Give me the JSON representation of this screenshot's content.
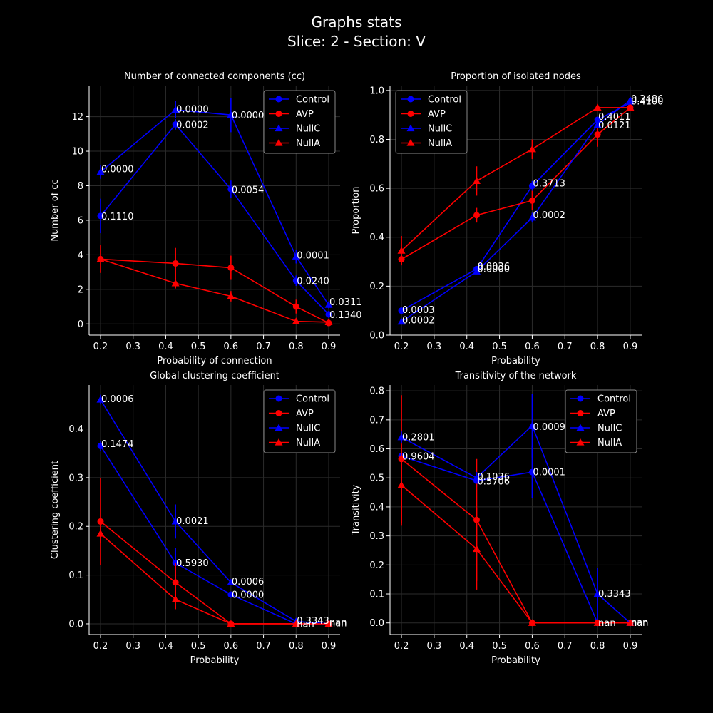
{
  "figure": {
    "title_line1": "Graphs stats",
    "title_line2": "Slice: 2  -  Section: V"
  },
  "colors": {
    "Control": "#0000ff",
    "AVP": "#ff0000",
    "NullC": "#0000ff",
    "NullA": "#ff0000"
  },
  "chart_data": [
    {
      "type": "line",
      "title": "Number of connected components (cc)",
      "xlabel": "Probability of connection",
      "ylabel": "Number of cc",
      "xlim": [
        0.165,
        0.935
      ],
      "ylim": [
        -0.65,
        13.8
      ],
      "xticks": [
        0.2,
        0.3,
        0.4,
        0.5,
        0.6,
        0.7,
        0.8,
        0.9
      ],
      "xtick_labels": [
        "0.2",
        "0.3",
        "0.4",
        "0.5",
        "0.6",
        "0.7",
        "0.8",
        "0.9"
      ],
      "yticks": [
        0,
        2,
        4,
        6,
        8,
        10,
        12
      ],
      "ytick_labels": [
        "0",
        "2",
        "4",
        "6",
        "8",
        "10",
        "12"
      ],
      "grid": true,
      "legend": "top-right",
      "x": [
        0.2,
        0.43,
        0.6,
        0.8,
        0.9
      ],
      "series": [
        {
          "name": "Control",
          "marker": "circle",
          "values": [
            6.25,
            11.55,
            7.8,
            2.5,
            0.55
          ],
          "err": [
            1.0,
            0.3,
            0.5,
            0.3,
            0.2
          ]
        },
        {
          "name": "AVP",
          "marker": "circle",
          "values": [
            3.75,
            3.5,
            3.25,
            1.0,
            0.05
          ],
          "err": [
            0.8,
            0.9,
            0.7,
            0.4,
            0.05
          ]
        },
        {
          "name": "NullC",
          "marker": "triangle",
          "values": [
            8.8,
            12.4,
            12.1,
            3.9,
            1.1
          ],
          "err": [
            0.4,
            0.5,
            1.0,
            0.4,
            0.2
          ]
        },
        {
          "name": "NullA",
          "marker": "triangle",
          "values": [
            3.75,
            2.35,
            1.6,
            0.15,
            0.1
          ],
          "err": [
            0.1,
            0.3,
            0.3,
            0.05,
            0.05
          ]
        }
      ],
      "annotations": [
        {
          "x": 0.2,
          "y": 9.0,
          "text": "0.0000"
        },
        {
          "x": 0.2,
          "y": 6.25,
          "text": "0.1110"
        },
        {
          "x": 0.43,
          "y": 12.45,
          "text": "0.0000"
        },
        {
          "x": 0.43,
          "y": 11.55,
          "text": "0.0002"
        },
        {
          "x": 0.6,
          "y": 12.1,
          "text": "0.0000"
        },
        {
          "x": 0.6,
          "y": 7.8,
          "text": "0.0054"
        },
        {
          "x": 0.8,
          "y": 4.0,
          "text": "0.0001"
        },
        {
          "x": 0.8,
          "y": 2.5,
          "text": "0.0240"
        },
        {
          "x": 0.9,
          "y": 1.3,
          "text": "0.0311"
        },
        {
          "x": 0.9,
          "y": 0.55,
          "text": "0.1340"
        }
      ]
    },
    {
      "type": "line",
      "title": "Proportion of isolated nodes",
      "xlabel": "Probability",
      "ylabel": "Proportion",
      "xlim": [
        0.165,
        0.935
      ],
      "ylim": [
        0.0,
        1.02
      ],
      "xticks": [
        0.2,
        0.3,
        0.4,
        0.5,
        0.6,
        0.7,
        0.8,
        0.9
      ],
      "xtick_labels": [
        "0.2",
        "0.3",
        "0.4",
        "0.5",
        "0.6",
        "0.7",
        "0.8",
        "0.9"
      ],
      "yticks": [
        0.0,
        0.2,
        0.4,
        0.6,
        0.8,
        1.0
      ],
      "ytick_labels": [
        "0.0",
        "0.2",
        "0.4",
        "0.6",
        "0.8",
        "1.0"
      ],
      "grid": true,
      "legend": "top-left",
      "x": [
        0.2,
        0.43,
        0.6,
        0.8,
        0.9
      ],
      "series": [
        {
          "name": "Control",
          "marker": "circle",
          "values": [
            0.1,
            0.27,
            0.61,
            0.88,
            0.95
          ],
          "err": [
            0.01,
            0.01,
            0.02,
            0.01,
            0.01
          ]
        },
        {
          "name": "AVP",
          "marker": "circle",
          "values": [
            0.31,
            0.49,
            0.55,
            0.82,
            0.93
          ],
          "err": [
            0.02,
            0.03,
            0.04,
            0.05,
            0.01
          ]
        },
        {
          "name": "NullC",
          "marker": "triangle",
          "values": [
            0.055,
            0.26,
            0.48,
            0.86,
            0.96
          ],
          "err": [
            0.01,
            0.01,
            0.02,
            0.01,
            0.01
          ]
        },
        {
          "name": "NullA",
          "marker": "triangle",
          "values": [
            0.345,
            0.63,
            0.76,
            0.93,
            0.93
          ],
          "err": [
            0.06,
            0.06,
            0.04,
            0.01,
            0.01
          ]
        }
      ],
      "annotations": [
        {
          "x": 0.2,
          "y": 0.105,
          "text": "0.0003"
        },
        {
          "x": 0.2,
          "y": 0.063,
          "text": "0.0002"
        },
        {
          "x": 0.43,
          "y": 0.282,
          "text": "0.0036"
        },
        {
          "x": 0.43,
          "y": 0.272,
          "text": "0.0000"
        },
        {
          "x": 0.6,
          "y": 0.622,
          "text": "0.3713"
        },
        {
          "x": 0.6,
          "y": 0.492,
          "text": "0.0002"
        },
        {
          "x": 0.8,
          "y": 0.895,
          "text": "0.4011"
        },
        {
          "x": 0.8,
          "y": 0.86,
          "text": "0.0121"
        },
        {
          "x": 0.9,
          "y": 0.967,
          "text": "0.2486"
        },
        {
          "x": 0.9,
          "y": 0.958,
          "text": "0.4100"
        }
      ]
    },
    {
      "type": "line",
      "title": "Global clustering coefficient",
      "xlabel": "Probability",
      "ylabel": "Clustering coefficient",
      "xlim": [
        0.165,
        0.935
      ],
      "ylim": [
        -0.022,
        0.49
      ],
      "xticks": [
        0.2,
        0.3,
        0.4,
        0.5,
        0.6,
        0.7,
        0.8,
        0.9
      ],
      "xtick_labels": [
        "0.2",
        "0.3",
        "0.4",
        "0.5",
        "0.6",
        "0.7",
        "0.8",
        "0.9"
      ],
      "yticks": [
        0.0,
        0.1,
        0.2,
        0.3,
        0.4
      ],
      "ytick_labels": [
        "0.0",
        "0.1",
        "0.2",
        "0.3",
        "0.4"
      ],
      "grid": true,
      "legend": "top-right",
      "x": [
        0.2,
        0.43,
        0.6,
        0.8,
        0.9
      ],
      "series": [
        {
          "name": "Control",
          "marker": "circle",
          "values": [
            0.365,
            0.125,
            0.06,
            0.0,
            0.0
          ],
          "err": [
            0.01,
            0.03,
            0.005,
            0.0,
            0.0
          ]
        },
        {
          "name": "AVP",
          "marker": "circle",
          "values": [
            0.21,
            0.085,
            0.0,
            0.0,
            0.0
          ],
          "err": [
            0.09,
            0.04,
            0.0,
            0.0,
            0.0
          ]
        },
        {
          "name": "NullC",
          "marker": "triangle",
          "values": [
            0.46,
            0.21,
            0.085,
            0.005,
            0.0
          ],
          "err": [
            0.01,
            0.035,
            0.005,
            0.002,
            0.0
          ]
        },
        {
          "name": "NullA",
          "marker": "triangle",
          "values": [
            0.185,
            0.05,
            0.0,
            0.0,
            0.0
          ],
          "err": [
            0.02,
            0.02,
            0.0,
            0.0,
            0.0
          ]
        }
      ],
      "annotations": [
        {
          "x": 0.2,
          "y": 0.462,
          "text": "0.0006"
        },
        {
          "x": 0.2,
          "y": 0.37,
          "text": "0.1474"
        },
        {
          "x": 0.43,
          "y": 0.212,
          "text": "0.0021"
        },
        {
          "x": 0.43,
          "y": 0.126,
          "text": "0.5930"
        },
        {
          "x": 0.6,
          "y": 0.088,
          "text": "0.0006"
        },
        {
          "x": 0.6,
          "y": 0.061,
          "text": "0.0000"
        },
        {
          "x": 0.8,
          "y": 0.007,
          "text": "0.3343"
        },
        {
          "x": 0.8,
          "y": 0.001,
          "text": "nan"
        },
        {
          "x": 0.9,
          "y": 0.004,
          "text": "nan"
        },
        {
          "x": 0.9,
          "y": 0.002,
          "text": "nan"
        }
      ]
    },
    {
      "type": "line",
      "title": "Transitivity of the network",
      "xlabel": "Probability",
      "ylabel": "Transitivity",
      "xlim": [
        0.165,
        0.935
      ],
      "ylim": [
        -0.04,
        0.82
      ],
      "xticks": [
        0.2,
        0.3,
        0.4,
        0.5,
        0.6,
        0.7,
        0.8,
        0.9
      ],
      "xtick_labels": [
        "0.2",
        "0.3",
        "0.4",
        "0.5",
        "0.6",
        "0.7",
        "0.8",
        "0.9"
      ],
      "yticks": [
        0.0,
        0.1,
        0.2,
        0.3,
        0.4,
        0.5,
        0.6,
        0.7,
        0.8
      ],
      "ytick_labels": [
        "0.0",
        "0.1",
        "0.2",
        "0.3",
        "0.4",
        "0.5",
        "0.6",
        "0.7",
        "0.8"
      ],
      "grid": true,
      "legend": "top-right",
      "x": [
        0.2,
        0.43,
        0.6,
        0.8,
        0.9
      ],
      "series": [
        {
          "name": "Control",
          "marker": "circle",
          "values": [
            0.575,
            0.49,
            0.52,
            0.0,
            0.0
          ],
          "err": [
            0.02,
            0.02,
            0.09,
            0.0,
            0.0
          ]
        },
        {
          "name": "AVP",
          "marker": "circle",
          "values": [
            0.565,
            0.355,
            0.0,
            0.0,
            0.0
          ],
          "err": [
            0.22,
            0.21,
            0.0,
            0.0,
            0.0
          ]
        },
        {
          "name": "NullC",
          "marker": "triangle",
          "values": [
            0.64,
            0.5,
            0.68,
            0.1,
            0.0
          ],
          "err": [
            0.02,
            0.02,
            0.11,
            0.09,
            0.0
          ]
        },
        {
          "name": "NullA",
          "marker": "triangle",
          "values": [
            0.475,
            0.255,
            0.0,
            0.0,
            0.0
          ],
          "err": [
            0.14,
            0.14,
            0.0,
            0.0,
            0.0
          ]
        }
      ],
      "annotations": [
        {
          "x": 0.2,
          "y": 0.642,
          "text": "0.2801"
        },
        {
          "x": 0.2,
          "y": 0.575,
          "text": "0.9604"
        },
        {
          "x": 0.43,
          "y": 0.506,
          "text": "0.1036"
        },
        {
          "x": 0.43,
          "y": 0.49,
          "text": "0.5706"
        },
        {
          "x": 0.6,
          "y": 0.677,
          "text": "0.0009"
        },
        {
          "x": 0.6,
          "y": 0.522,
          "text": "0.0001"
        },
        {
          "x": 0.8,
          "y": 0.102,
          "text": "0.3343"
        },
        {
          "x": 0.8,
          "y": 0.002,
          "text": "nan"
        },
        {
          "x": 0.9,
          "y": 0.004,
          "text": "nan"
        },
        {
          "x": 0.9,
          "y": 0.002,
          "text": "nan"
        }
      ]
    }
  ]
}
